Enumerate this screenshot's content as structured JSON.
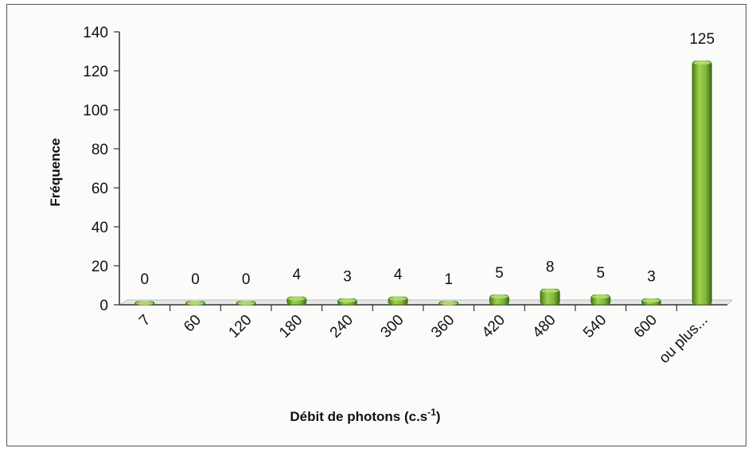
{
  "chart_data": {
    "type": "bar",
    "categories": [
      "7",
      "60",
      "120",
      "180",
      "240",
      "300",
      "360",
      "420",
      "480",
      "540",
      "600",
      "ou plus..."
    ],
    "values": [
      0,
      0,
      0,
      4,
      3,
      4,
      1,
      5,
      8,
      5,
      3,
      125
    ],
    "data_labels": [
      "0",
      "0",
      "0",
      "4",
      "3",
      "4",
      "1",
      "5",
      "8",
      "5",
      "3",
      "125"
    ],
    "xlabel_main": "Débit de photons (c.s",
    "xlabel_sup": "-1",
    "xlabel_end": ")",
    "ylabel": "Fréquence",
    "ylim": [
      0,
      140
    ],
    "yticks": [
      0,
      20,
      40,
      60,
      80,
      100,
      120,
      140
    ],
    "grid": false,
    "legend": "none",
    "colors": {
      "bar": "#8cc63f",
      "bar_dark": "#3d6b12",
      "floor": "#e6e6e6"
    }
  }
}
